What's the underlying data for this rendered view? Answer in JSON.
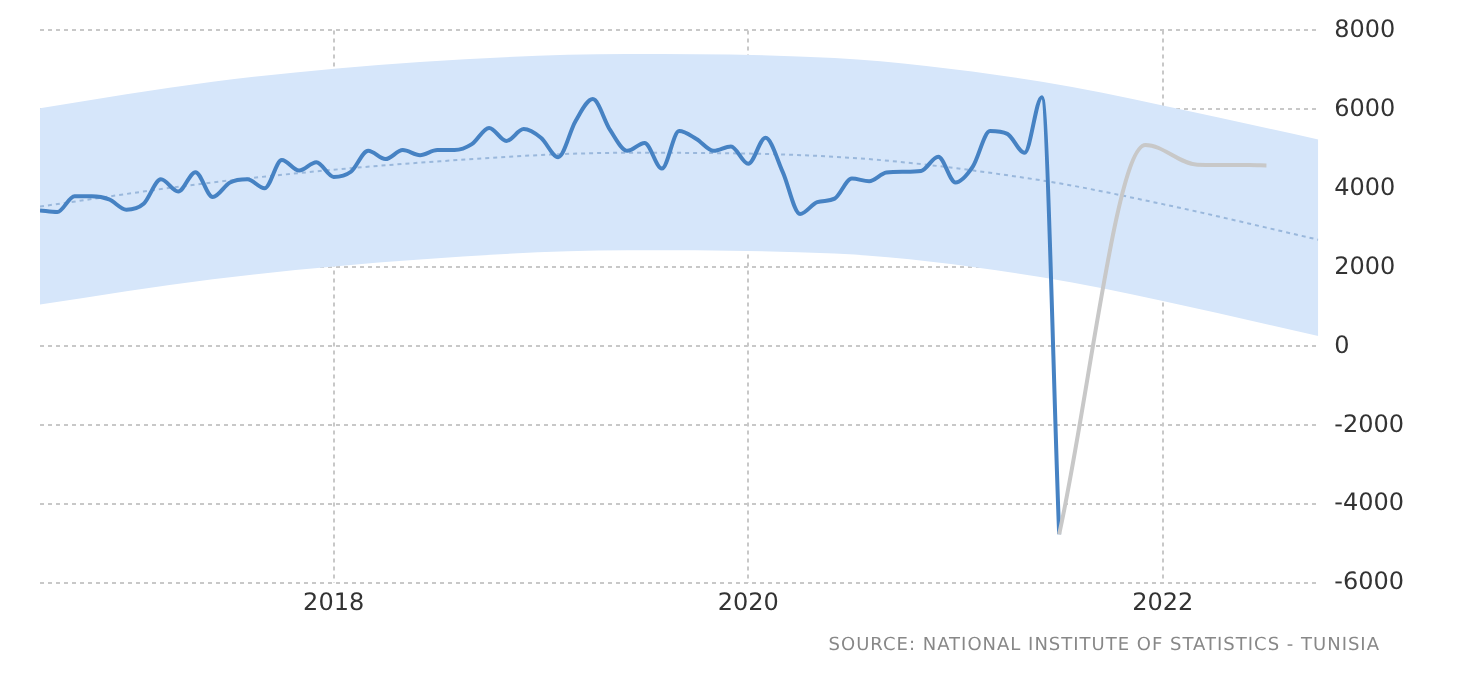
{
  "chart_data": {
    "type": "line",
    "annotations": [
      "SOURCE: NATIONAL INSTITUTE OF STATISTICS - TUNISIA"
    ],
    "xlim": [
      "2016-08",
      "2022-10"
    ],
    "xticks": [
      "2018",
      "2020",
      "2022"
    ],
    "ylim": [
      -6000,
      8000
    ],
    "yticks": [
      -6000,
      -4000,
      -2000,
      0,
      2000,
      4000,
      6000,
      8000
    ],
    "grid": true,
    "legend": false,
    "marker": "none",
    "series": [
      {
        "color": "#9ab8dc",
        "line_style": "dotted",
        "x": [
          "2016-08",
          "2017-06",
          "2018-06",
          "2019-06",
          "2020-06",
          "2021-06",
          "2022-01",
          "2022-10"
        ],
        "values": [
          3540,
          4150,
          4650,
          4900,
          4800,
          4200,
          3600,
          2700
        ],
        "lower": [
          1060,
          1700,
          2200,
          2430,
          2350,
          1750,
          1150,
          260
        ],
        "upper": [
          6030,
          6700,
          7200,
          7400,
          7300,
          6700,
          6100,
          5240
        ]
      },
      {
        "color": "#c8c8c8",
        "x": [
          "2021-07",
          "2021-12",
          "2022-03",
          "2022-06",
          "2022-07"
        ],
        "values": [
          -4760,
          5100,
          4600,
          4590,
          4580
        ]
      },
      {
        "color": "#4682c3",
        "x": [
          "2016-08",
          "2016-09",
          "2016-10",
          "2016-11",
          "2016-12",
          "2017-01",
          "2017-02",
          "2017-03",
          "2017-04",
          "2017-05",
          "2017-06",
          "2017-07",
          "2017-08",
          "2017-09",
          "2017-10",
          "2017-11",
          "2017-12",
          "2018-01",
          "2018-02",
          "2018-03",
          "2018-04",
          "2018-05",
          "2018-06",
          "2018-07",
          "2018-08",
          "2018-09",
          "2018-10",
          "2018-11",
          "2018-12",
          "2019-01",
          "2019-02",
          "2019-03",
          "2019-04",
          "2019-05",
          "2019-06",
          "2019-07",
          "2019-08",
          "2019-09",
          "2019-10",
          "2019-11",
          "2019-12",
          "2020-01",
          "2020-02",
          "2020-03",
          "2020-04",
          "2020-05",
          "2020-06",
          "2020-07",
          "2020-08",
          "2020-09",
          "2020-10",
          "2020-11",
          "2020-12",
          "2021-01",
          "2021-02",
          "2021-03",
          "2021-04",
          "2021-05",
          "2021-06",
          "2021-07"
        ],
        "values": [
          3440,
          3400,
          3800,
          3800,
          3720,
          3460,
          3610,
          4230,
          3920,
          4410,
          3780,
          4150,
          4230,
          4000,
          4720,
          4450,
          4660,
          4290,
          4420,
          4950,
          4740,
          4970,
          4840,
          4970,
          4970,
          5120,
          5530,
          5200,
          5500,
          5280,
          4790,
          5700,
          6260,
          5480,
          4950,
          5150,
          4500,
          5450,
          5250,
          4950,
          5060,
          4620,
          5280,
          4410,
          3350,
          3650,
          3740,
          4250,
          4180,
          4400,
          4420,
          4440,
          4800,
          4150,
          4550,
          5450,
          5380,
          4900,
          6310,
          -4760
        ]
      }
    ]
  }
}
